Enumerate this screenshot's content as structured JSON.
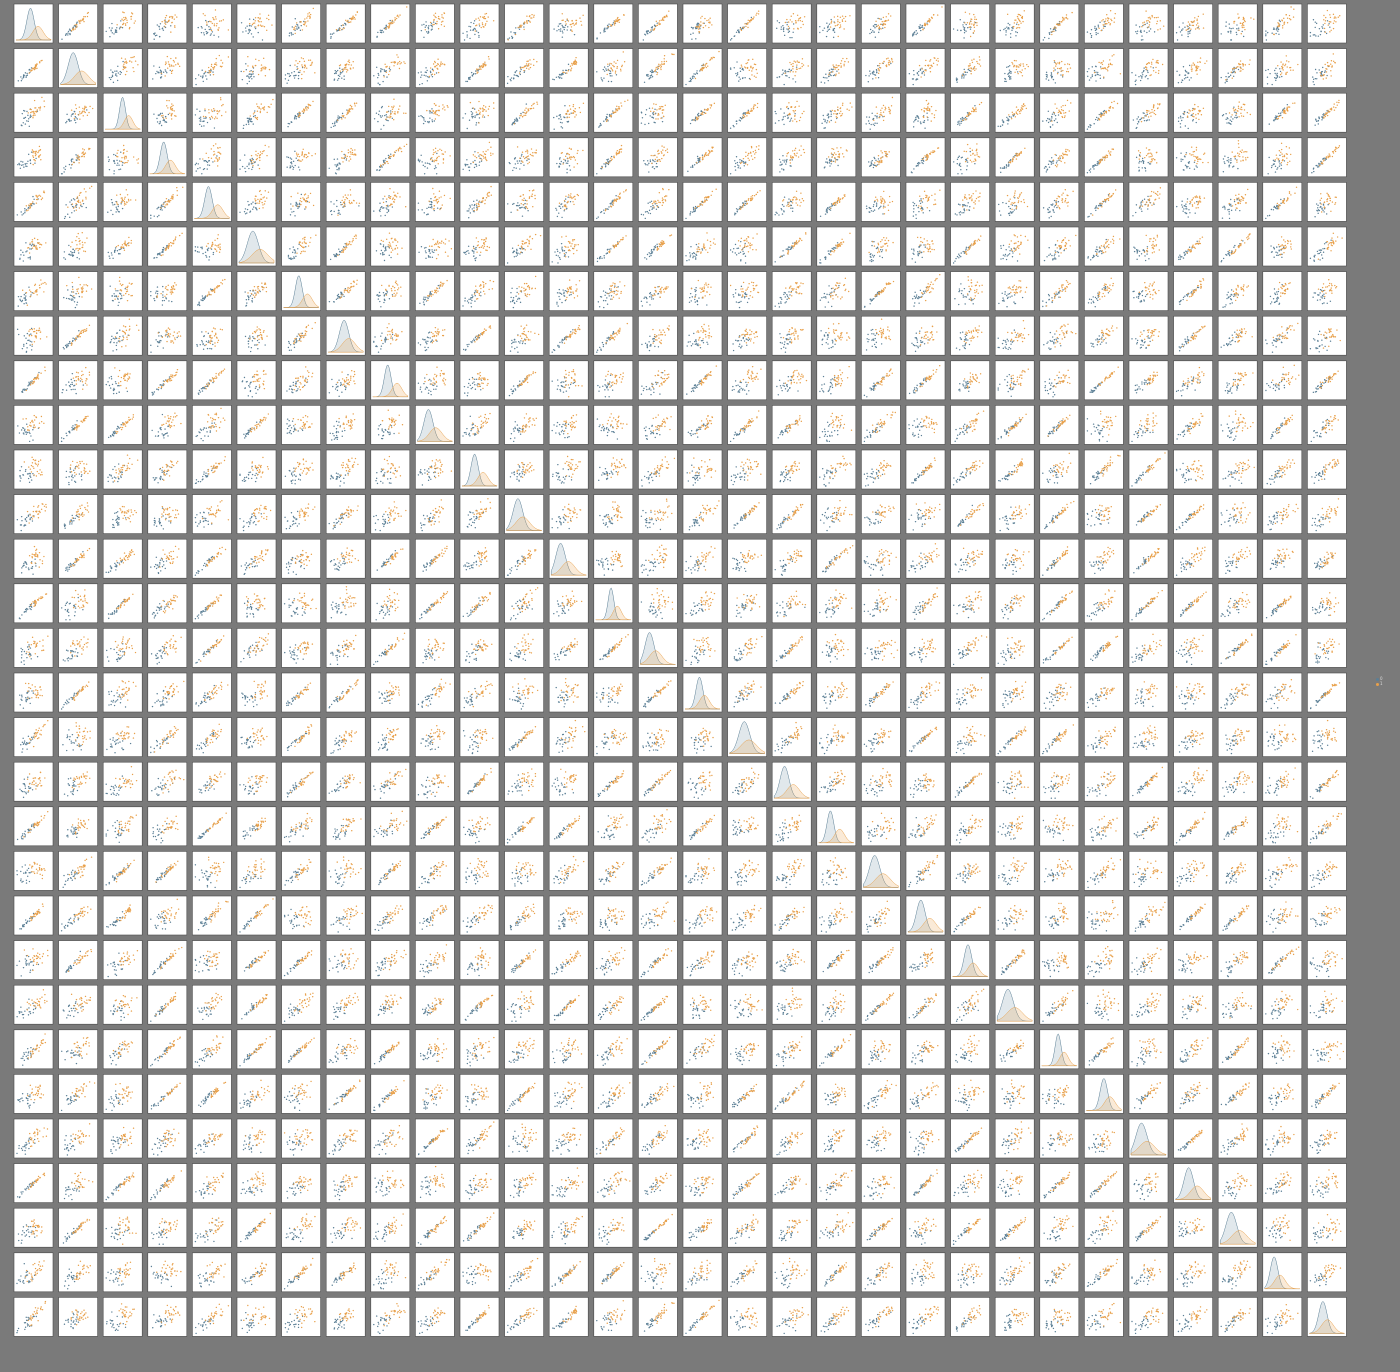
{
  "chart_data": {
    "type": "scatter",
    "subtype": "pairplot",
    "variables_count": 30,
    "variable_names": [],
    "hue": {
      "title": "",
      "classes": [
        {
          "label": "0",
          "color": "#5b7f95"
        },
        {
          "label": "1",
          "color": "#e8a04a"
        }
      ]
    },
    "diagonal": "kde",
    "off_diagonal": "scatter",
    "legend_position": "right-center",
    "grid": false
  }
}
